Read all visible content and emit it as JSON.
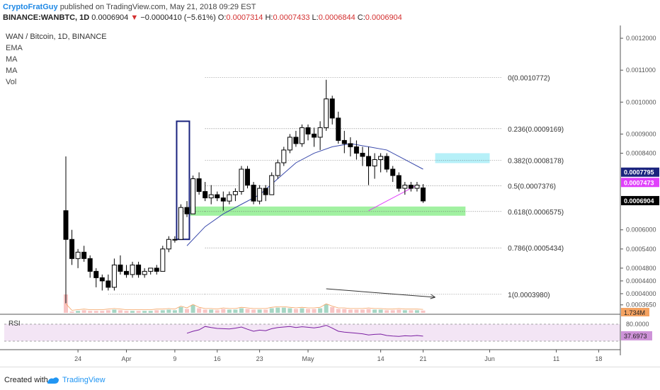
{
  "header": {
    "author": "CryptoFratGuy",
    "published": "published on TradingView.com, May 21, 2018 09:29 EST",
    "symbol": "BINANCE:WANBTC, 1D",
    "last": "0.0006904",
    "change": "−0.0000410 (−5.61%)",
    "open_label": "O:",
    "open": "0.0007314",
    "high_label": "H:",
    "high": "0.0007433",
    "low_label": "L:",
    "low": "0.0006844",
    "close_label": "C:",
    "close": "0.0006904"
  },
  "legend": {
    "title": "WAN / Bitcoin, 1D, BINANCE",
    "items": [
      "EMA",
      "MA",
      "MA",
      "Vol"
    ]
  },
  "footer": {
    "created": "Created with",
    "brand": "TradingView"
  },
  "colors": {
    "up": "#ffffff",
    "down": "#000000",
    "ma": "#3949ab",
    "ma2": "#e040fb",
    "fib_zone": "#90ee90",
    "cyan_zone": "#aeeef7",
    "box": "#1a237e",
    "vol_up": "#a5d6c4",
    "vol_down": "#f8c4c4",
    "rsi": "#7b1fa2",
    "rsi_band": "#f3e5f5"
  },
  "chart_data": {
    "type": "candlestick",
    "title": "WAN / Bitcoin, 1D, BINANCE",
    "x_start": "2018-03-22",
    "x_ticks": [
      "24",
      "Apr",
      "9",
      "16",
      "23",
      "May",
      "14",
      "21",
      "Jun",
      "11",
      "18"
    ],
    "y_ticks": [
      "0.0012000",
      "0.0011000",
      "0.0010000",
      "0.0009000",
      "0.0008400",
      "0.0007795",
      "0.0007473",
      "0.0006904",
      "0.0006000",
      "0.0005400",
      "0.0004800",
      "0.0004400",
      "0.0004000",
      "0.0003650"
    ],
    "ylim": [
      0.00034,
      0.00124
    ],
    "candles": [
      {
        "o": 0.00066,
        "h": 0.00083,
        "l": 0.00037,
        "c": 0.00057
      },
      {
        "o": 0.00057,
        "h": 0.0006,
        "l": 0.00049,
        "c": 0.00051
      },
      {
        "o": 0.00051,
        "h": 0.00054,
        "l": 0.00048,
        "c": 0.00053
      },
      {
        "o": 0.00053,
        "h": 0.00055,
        "l": 0.0005,
        "c": 0.00051
      },
      {
        "o": 0.00051,
        "h": 0.00052,
        "l": 0.00045,
        "c": 0.00047
      },
      {
        "o": 0.00047,
        "h": 0.00048,
        "l": 0.00042,
        "c": 0.00045
      },
      {
        "o": 0.00045,
        "h": 0.00046,
        "l": 0.00041,
        "c": 0.00044
      },
      {
        "o": 0.00044,
        "h": 0.00046,
        "l": 0.00041,
        "c": 0.00042
      },
      {
        "o": 0.00042,
        "h": 0.00051,
        "l": 0.00041,
        "c": 0.00049
      },
      {
        "o": 0.00049,
        "h": 0.00052,
        "l": 0.00046,
        "c": 0.00047
      },
      {
        "o": 0.00047,
        "h": 0.00049,
        "l": 0.00045,
        "c": 0.00046
      },
      {
        "o": 0.00046,
        "h": 0.0005,
        "l": 0.00045,
        "c": 0.00049
      },
      {
        "o": 0.00049,
        "h": 0.0005,
        "l": 0.00045,
        "c": 0.00046
      },
      {
        "o": 0.00046,
        "h": 0.00048,
        "l": 0.00045,
        "c": 0.00047
      },
      {
        "o": 0.00047,
        "h": 0.00048,
        "l": 0.00046,
        "c": 0.00048
      },
      {
        "o": 0.00048,
        "h": 0.00049,
        "l": 0.00046,
        "c": 0.00047
      },
      {
        "o": 0.00047,
        "h": 0.00055,
        "l": 0.00047,
        "c": 0.00054
      },
      {
        "o": 0.00054,
        "h": 0.00058,
        "l": 0.00053,
        "c": 0.00057
      },
      {
        "o": 0.00057,
        "h": 0.00058,
        "l": 0.00056,
        "c": 0.00057
      },
      {
        "o": 0.00057,
        "h": 0.00068,
        "l": 0.00057,
        "c": 0.00067
      },
      {
        "o": 0.00067,
        "h": 0.00069,
        "l": 0.00064,
        "c": 0.00065
      },
      {
        "o": 0.00065,
        "h": 0.00077,
        "l": 0.00065,
        "c": 0.00076
      },
      {
        "o": 0.00076,
        "h": 0.00078,
        "l": 0.00071,
        "c": 0.00072
      },
      {
        "o": 0.00072,
        "h": 0.00075,
        "l": 0.00069,
        "c": 0.0007
      },
      {
        "o": 0.0007,
        "h": 0.00074,
        "l": 0.00068,
        "c": 0.00071
      },
      {
        "o": 0.00071,
        "h": 0.00072,
        "l": 0.00069,
        "c": 0.0007
      },
      {
        "o": 0.0007,
        "h": 0.00072,
        "l": 0.00066,
        "c": 0.00069
      },
      {
        "o": 0.00069,
        "h": 0.00072,
        "l": 0.00068,
        "c": 0.00071
      },
      {
        "o": 0.00071,
        "h": 0.00073,
        "l": 0.00069,
        "c": 0.00072
      },
      {
        "o": 0.00072,
        "h": 0.0008,
        "l": 0.00071,
        "c": 0.00079
      },
      {
        "o": 0.00079,
        "h": 0.0008,
        "l": 0.00073,
        "c": 0.00074
      },
      {
        "o": 0.00074,
        "h": 0.00075,
        "l": 0.00068,
        "c": 0.00069
      },
      {
        "o": 0.00069,
        "h": 0.00074,
        "l": 0.00068,
        "c": 0.00073
      },
      {
        "o": 0.00073,
        "h": 0.00074,
        "l": 0.00069,
        "c": 0.00071
      },
      {
        "o": 0.00071,
        "h": 0.00078,
        "l": 0.00071,
        "c": 0.00077
      },
      {
        "o": 0.00077,
        "h": 0.00082,
        "l": 0.00076,
        "c": 0.00081
      },
      {
        "o": 0.00081,
        "h": 0.00086,
        "l": 0.0008,
        "c": 0.00085
      },
      {
        "o": 0.00085,
        "h": 0.0009,
        "l": 0.00084,
        "c": 0.00089
      },
      {
        "o": 0.00089,
        "h": 0.00091,
        "l": 0.00086,
        "c": 0.00087
      },
      {
        "o": 0.00087,
        "h": 0.00093,
        "l": 0.00086,
        "c": 0.00092
      },
      {
        "o": 0.00092,
        "h": 0.00093,
        "l": 0.00088,
        "c": 0.0009
      },
      {
        "o": 0.0009,
        "h": 0.00092,
        "l": 0.00086,
        "c": 0.00089
      },
      {
        "o": 0.00089,
        "h": 0.00094,
        "l": 0.00085,
        "c": 0.00092
      },
      {
        "o": 0.00092,
        "h": 0.00107,
        "l": 0.00091,
        "c": 0.00101
      },
      {
        "o": 0.00101,
        "h": 0.00102,
        "l": 0.00093,
        "c": 0.00095
      },
      {
        "o": 0.00095,
        "h": 0.00097,
        "l": 0.00087,
        "c": 0.00088
      },
      {
        "o": 0.00088,
        "h": 0.00091,
        "l": 0.00084,
        "c": 0.00087
      },
      {
        "o": 0.00087,
        "h": 0.00089,
        "l": 0.00083,
        "c": 0.00086
      },
      {
        "o": 0.00086,
        "h": 0.00088,
        "l": 0.00082,
        "c": 0.00084
      },
      {
        "o": 0.00084,
        "h": 0.00086,
        "l": 0.0008,
        "c": 0.00083
      },
      {
        "o": 0.00083,
        "h": 0.00086,
        "l": 0.00074,
        "c": 0.0008
      },
      {
        "o": 0.0008,
        "h": 0.00084,
        "l": 0.00076,
        "c": 0.00082
      },
      {
        "o": 0.00082,
        "h": 0.00084,
        "l": 0.00078,
        "c": 0.00083
      },
      {
        "o": 0.00083,
        "h": 0.00084,
        "l": 0.00078,
        "c": 0.00079
      },
      {
        "o": 0.00079,
        "h": 0.0008,
        "l": 0.00075,
        "c": 0.00077
      },
      {
        "o": 0.00077,
        "h": 0.00078,
        "l": 0.00072,
        "c": 0.00073
      },
      {
        "o": 0.00073,
        "h": 0.00075,
        "l": 0.00071,
        "c": 0.00074
      },
      {
        "o": 0.00074,
        "h": 0.00075,
        "l": 0.00072,
        "c": 0.00073
      },
      {
        "o": 0.00073,
        "h": 0.00075,
        "l": 0.00072,
        "c": 0.00074
      },
      {
        "o": 0.0007314,
        "h": 0.0007433,
        "l": 0.0006844,
        "c": 0.0006904
      }
    ],
    "volume": [
      3.0,
      0.2,
      0.3,
      0.4,
      0.3,
      0.3,
      0.3,
      0.4,
      0.5,
      0.4,
      0.3,
      0.3,
      0.3,
      0.3,
      0.3,
      0.4,
      0.4,
      0.5,
      0.4,
      0.9,
      0.6,
      1.2,
      0.7,
      0.5,
      0.5,
      0.4,
      0.6,
      0.5,
      0.5,
      0.7,
      0.6,
      0.5,
      0.5,
      0.5,
      0.7,
      0.8,
      0.8,
      0.7,
      0.6,
      0.7,
      0.6,
      0.6,
      0.7,
      1.3,
      0.9,
      0.6,
      0.6,
      0.5,
      0.5,
      0.5,
      0.6,
      0.5,
      0.5,
      0.4,
      0.4,
      0.5,
      0.4,
      0.4,
      0.4,
      0.35
    ],
    "fib_levels": [
      {
        "ratio": "0",
        "value": 0.0010772,
        "label": "0(0.0010772)"
      },
      {
        "ratio": "0.236",
        "value": 0.0009169,
        "label": "0.236(0.0009169)"
      },
      {
        "ratio": "0.382",
        "value": 0.0008178,
        "label": "0.382(0.0008178)"
      },
      {
        "ratio": "0.5",
        "value": 0.0007376,
        "label": "0.5(0.0007376)"
      },
      {
        "ratio": "0.618",
        "value": 0.0006575,
        "label": "0.618(0.0006575)"
      },
      {
        "ratio": "0.786",
        "value": 0.0005434,
        "label": "0.786(0.0005434)"
      },
      {
        "ratio": "1",
        "value": 0.000398,
        "label": "1(0.0003980)"
      }
    ],
    "ma_blue": [
      [
        20,
        0.00055
      ],
      [
        23,
        0.00061
      ],
      [
        26,
        0.00065
      ],
      [
        29,
        0.00068
      ],
      [
        32,
        0.00071
      ],
      [
        35,
        0.00076
      ],
      [
        38,
        0.00081
      ],
      [
        41,
        0.00084
      ],
      [
        44,
        0.00086
      ],
      [
        47,
        0.00087
      ],
      [
        50,
        0.00086
      ],
      [
        53,
        0.00085
      ],
      [
        56,
        0.00082
      ],
      [
        59,
        0.00079
      ]
    ],
    "ma_pink": [
      [
        50,
        0.00066
      ],
      [
        53,
        0.00069
      ],
      [
        56,
        0.00072
      ],
      [
        58,
        0.00074
      ]
    ],
    "price_labels": [
      {
        "value": 0.0007795,
        "text": "0.0007795"
      },
      {
        "value": 0.0007473,
        "text": "0.0007473"
      },
      {
        "value": 0.0006904,
        "text": "0.0006904"
      }
    ],
    "volume_label": "1.734M",
    "rsi": {
      "label": "RSI",
      "upper": 80.0,
      "lower": 20.0,
      "upper_text": "80.0000",
      "last_text": "37.6973",
      "values": [
        [
          20,
          48
        ],
        [
          21,
          55
        ],
        [
          22,
          60
        ],
        [
          23,
          72
        ],
        [
          24,
          68
        ],
        [
          25,
          65
        ],
        [
          26,
          64
        ],
        [
          27,
          63
        ],
        [
          28,
          66
        ],
        [
          29,
          70
        ],
        [
          30,
          62
        ],
        [
          31,
          55
        ],
        [
          32,
          59
        ],
        [
          33,
          57
        ],
        [
          34,
          64
        ],
        [
          35,
          68
        ],
        [
          36,
          70
        ],
        [
          37,
          72
        ],
        [
          38,
          68
        ],
        [
          39,
          71
        ],
        [
          40,
          69
        ],
        [
          41,
          67
        ],
        [
          42,
          70
        ],
        [
          43,
          76
        ],
        [
          44,
          66
        ],
        [
          45,
          55
        ],
        [
          46,
          52
        ],
        [
          47,
          50
        ],
        [
          48,
          48
        ],
        [
          49,
          46
        ],
        [
          50,
          42
        ],
        [
          51,
          44
        ],
        [
          52,
          45
        ],
        [
          53,
          40
        ],
        [
          54,
          38
        ],
        [
          55,
          37
        ],
        [
          56,
          39
        ],
        [
          57,
          38
        ],
        [
          58,
          40
        ],
        [
          59,
          37.6973
        ]
      ]
    },
    "rsi_ylim": [
      0,
      100
    ]
  }
}
